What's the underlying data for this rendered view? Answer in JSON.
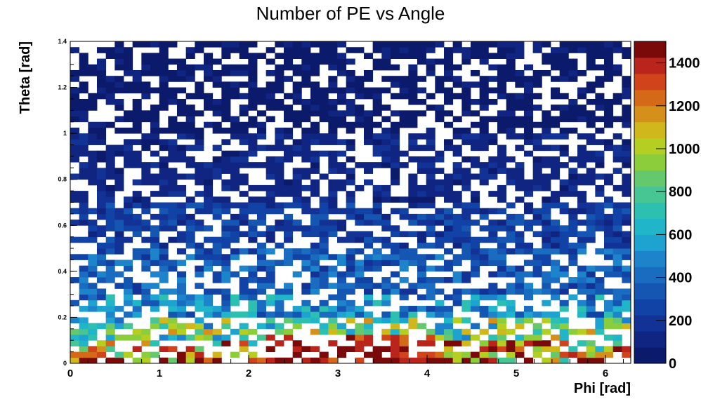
{
  "chart_data": {
    "type": "heatmap",
    "title": "Number of PE vs Angle",
    "xlabel": "Phi [rad]",
    "ylabel": "Theta [rad]",
    "xlim": [
      0,
      6.283
    ],
    "ylim": [
      0,
      1.4
    ],
    "zlim": [
      0,
      1500
    ],
    "x_ticks": [
      "0",
      "1",
      "2",
      "3",
      "4",
      "5",
      "6"
    ],
    "y_ticks": [
      "0",
      "0.2",
      "0.4",
      "0.6",
      "0.8",
      "1",
      "1.2",
      "1.4"
    ],
    "z_ticks": [
      "0",
      "200",
      "400",
      "600",
      "800",
      "1000",
      "1200",
      "1400"
    ],
    "grid": false,
    "colormap": "rainbow (dark blue → cyan → green → yellow → orange → red → dark red)",
    "empty_bin_color": "#ffffff",
    "n_phi_bins": 63,
    "n_theta_bins": 56,
    "approx_intensity_by_theta": [
      {
        "theta": [
          0.0,
          0.03
        ],
        "value": 1300
      },
      {
        "theta": [
          0.03,
          0.1
        ],
        "value": 1100
      },
      {
        "theta": [
          0.1,
          0.2
        ],
        "value": 800
      },
      {
        "theta": [
          0.2,
          0.3
        ],
        "value": 500
      },
      {
        "theta": [
          0.3,
          0.5
        ],
        "value": 350
      },
      {
        "theta": [
          0.5,
          0.7
        ],
        "value": 230
      },
      {
        "theta": [
          0.7,
          1.0
        ],
        "value": 120
      },
      {
        "theta": [
          1.0,
          1.4
        ],
        "value": 60
      }
    ]
  }
}
